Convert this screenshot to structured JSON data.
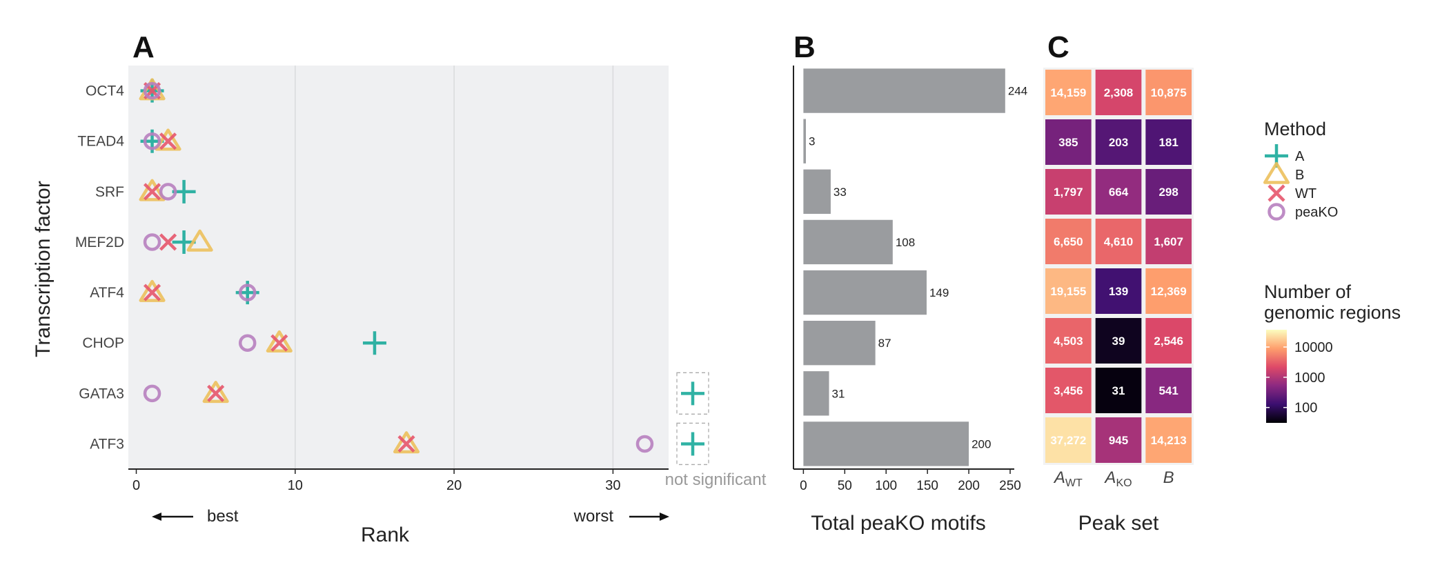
{
  "panels": {
    "a": "A",
    "b": "B",
    "c": "C"
  },
  "colors": {
    "A": "#1aaa9a",
    "B": "#ecc05c",
    "WT": "#e6556b",
    "peaKO": "#b77fbf",
    "bar": "#9a9c9f",
    "panel_bg": "#eff0f2"
  },
  "chart_data": [
    {
      "type": "scatter",
      "panel": "A",
      "ylabel": "Transcription factor",
      "xlabel": "Rank",
      "x_ticks": [
        0,
        10,
        20,
        30
      ],
      "xlim": [
        -0.5,
        33.5
      ],
      "grid": true,
      "not_significant_label": "not significant",
      "direction_labels": {
        "best": "best",
        "worst": "worst"
      },
      "categories": [
        "OCT4",
        "TEAD4",
        "SRF",
        "MEF2D",
        "ATF4",
        "CHOP",
        "GATA3",
        "ATF3"
      ],
      "series": [
        {
          "name": "A",
          "marker": "plus",
          "values": [
            1,
            1,
            3,
            3,
            7,
            15,
            "NS",
            "NS"
          ]
        },
        {
          "name": "B",
          "marker": "triangle",
          "values": [
            1,
            2,
            1,
            4,
            1,
            9,
            5,
            17
          ]
        },
        {
          "name": "WT",
          "marker": "x",
          "values": [
            1,
            2,
            1,
            2,
            1,
            9,
            5,
            17
          ]
        },
        {
          "name": "peaKO",
          "marker": "circle",
          "values": [
            1,
            1,
            2,
            1,
            7,
            7,
            1,
            32
          ]
        }
      ],
      "legend": {
        "title": "Method",
        "entries": [
          "A",
          "B",
          "WT",
          "peaKO"
        ]
      }
    },
    {
      "type": "bar",
      "panel": "B",
      "orientation": "horizontal",
      "xlabel": "Total peaKO motifs",
      "x_ticks": [
        0,
        50,
        100,
        150,
        200,
        250
      ],
      "xlim": [
        -12,
        255
      ],
      "categories": [
        "OCT4",
        "TEAD4",
        "SRF",
        "MEF2D",
        "ATF4",
        "CHOP",
        "GATA3",
        "ATF3"
      ],
      "values": [
        244,
        3,
        33,
        108,
        149,
        87,
        31,
        200
      ]
    },
    {
      "type": "heatmap",
      "panel": "C",
      "xlabel": "Peak set",
      "columns": [
        {
          "base": "A",
          "sub": "WT"
        },
        {
          "base": "A",
          "sub": "KO"
        },
        {
          "base": "B",
          "sub": ""
        }
      ],
      "rows": [
        "OCT4",
        "TEAD4",
        "SRF",
        "MEF2D",
        "ATF4",
        "CHOP",
        "GATA3",
        "ATF3"
      ],
      "values": [
        [
          14159,
          2308,
          10875
        ],
        [
          385,
          203,
          181
        ],
        [
          1797,
          664,
          298
        ],
        [
          6650,
          4610,
          1607
        ],
        [
          19155,
          139,
          12369
        ],
        [
          4503,
          39,
          2546
        ],
        [
          3456,
          31,
          541
        ],
        [
          37272,
          945,
          14213
        ]
      ],
      "labels": [
        [
          "14,159",
          "2,308",
          "10,875"
        ],
        [
          "385",
          "203",
          "181"
        ],
        [
          "1,797",
          "664",
          "298"
        ],
        [
          "6,650",
          "4,610",
          "1,607"
        ],
        [
          "19,155",
          "139",
          "12,369"
        ],
        [
          "4,503",
          "39",
          "2,546"
        ],
        [
          "3,456",
          "31",
          "541"
        ],
        [
          "37,272",
          "945",
          "14,213"
        ]
      ],
      "colorbar": {
        "title_line1": "Number of",
        "title_line2": "genomic regions",
        "ticks": [
          10000,
          1000,
          100
        ],
        "tick_labels": [
          "10000",
          "1000",
          "100"
        ],
        "scale": "log",
        "range": [
          31,
          37272
        ]
      }
    }
  ]
}
